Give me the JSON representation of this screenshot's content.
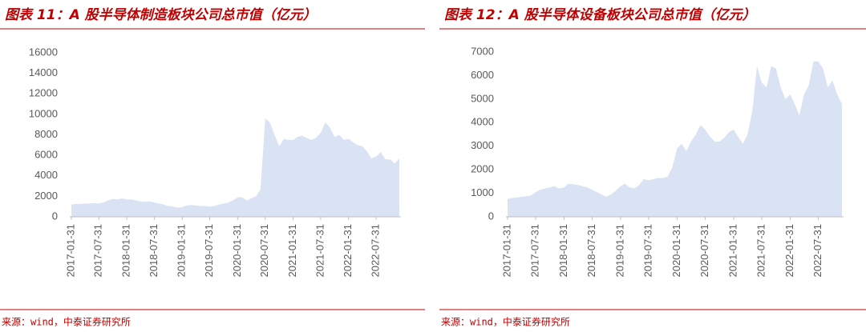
{
  "chart_data": [
    {
      "type": "area",
      "title": "图表 11：A 股半导体制造板块公司总市值（亿元）",
      "source": "来源：wind，中泰证券研究所",
      "color": "#dae3f3",
      "x": [
        "2017-01-31",
        "2017-02-28",
        "2017-03-31",
        "2017-04-30",
        "2017-05-31",
        "2017-06-30",
        "2017-07-31",
        "2017-08-31",
        "2017-09-30",
        "2017-10-31",
        "2017-11-30",
        "2017-12-31",
        "2018-01-31",
        "2018-02-28",
        "2018-03-31",
        "2018-04-30",
        "2018-05-31",
        "2018-06-30",
        "2018-07-31",
        "2018-08-31",
        "2018-09-30",
        "2018-10-31",
        "2018-11-30",
        "2018-12-31",
        "2019-01-31",
        "2019-02-28",
        "2019-03-31",
        "2019-04-30",
        "2019-05-31",
        "2019-06-30",
        "2019-07-31",
        "2019-08-31",
        "2019-09-30",
        "2019-10-31",
        "2019-11-30",
        "2019-12-31",
        "2020-01-31",
        "2020-02-29",
        "2020-03-31",
        "2020-04-30",
        "2020-05-31",
        "2020-06-30",
        "2020-07-31",
        "2020-08-31",
        "2020-09-30",
        "2020-10-31",
        "2020-11-30",
        "2020-12-31",
        "2021-01-31",
        "2021-02-28",
        "2021-03-31",
        "2021-04-30",
        "2021-05-31",
        "2021-06-30",
        "2021-07-31",
        "2021-08-31",
        "2021-09-30",
        "2021-10-31",
        "2021-11-30",
        "2021-12-31",
        "2022-01-31",
        "2022-02-28",
        "2022-03-31",
        "2022-04-30",
        "2022-05-31",
        "2022-06-30",
        "2022-07-31",
        "2022-08-31",
        "2022-09-30",
        "2022-10-31",
        "2022-11-30",
        "2022-12-31"
      ],
      "values": [
        1200,
        1250,
        1250,
        1300,
        1300,
        1350,
        1300,
        1400,
        1600,
        1750,
        1700,
        1800,
        1700,
        1700,
        1600,
        1500,
        1450,
        1500,
        1400,
        1300,
        1200,
        1050,
        1000,
        900,
        950,
        1100,
        1150,
        1100,
        1050,
        1050,
        1000,
        1050,
        1200,
        1300,
        1400,
        1600,
        1900,
        1900,
        1600,
        1800,
        2000,
        2700,
        9600,
        9200,
        8000,
        6900,
        7600,
        7500,
        7500,
        7800,
        7900,
        7700,
        7500,
        7700,
        8200,
        9200,
        8700,
        7800,
        8000,
        7500,
        7600,
        7300,
        7000,
        6900,
        6400,
        5700,
        5900,
        6300,
        5600,
        5600,
        5200,
        5700
      ],
      "ylim": [
        0,
        16000
      ],
      "yticks": [
        0,
        2000,
        4000,
        6000,
        8000,
        10000,
        12000,
        14000,
        16000
      ],
      "xticks": [
        "2017-01-31",
        "2017-07-31",
        "2018-01-31",
        "2018-07-31",
        "2019-01-31",
        "2019-07-31",
        "2020-01-31",
        "2020-07-31",
        "2021-01-31",
        "2021-07-31",
        "2022-01-31",
        "2022-07-31"
      ]
    },
    {
      "type": "area",
      "title": "图表 12：A 股半导体设备板块公司总市值（亿元）",
      "source": "来源：wind，中泰证券研究所",
      "color": "#dae3f3",
      "x": [
        "2017-01-31",
        "2017-02-28",
        "2017-03-31",
        "2017-04-30",
        "2017-05-31",
        "2017-06-30",
        "2017-07-31",
        "2017-08-31",
        "2017-09-30",
        "2017-10-31",
        "2017-11-30",
        "2017-12-31",
        "2018-01-31",
        "2018-02-28",
        "2018-03-31",
        "2018-04-30",
        "2018-05-31",
        "2018-06-30",
        "2018-07-31",
        "2018-08-31",
        "2018-09-30",
        "2018-10-31",
        "2018-11-30",
        "2018-12-31",
        "2019-01-31",
        "2019-02-28",
        "2019-03-31",
        "2019-04-30",
        "2019-05-31",
        "2019-06-30",
        "2019-07-31",
        "2019-08-31",
        "2019-09-30",
        "2019-10-31",
        "2019-11-30",
        "2019-12-31",
        "2020-01-31",
        "2020-02-29",
        "2020-03-31",
        "2020-04-30",
        "2020-05-31",
        "2020-06-30",
        "2020-07-31",
        "2020-08-31",
        "2020-09-30",
        "2020-10-31",
        "2020-11-30",
        "2020-12-31",
        "2021-01-31",
        "2021-02-28",
        "2021-03-31",
        "2021-04-30",
        "2021-05-31",
        "2021-06-30",
        "2021-07-31",
        "2021-08-31",
        "2021-09-30",
        "2021-10-31",
        "2021-11-30",
        "2021-12-31",
        "2022-01-31",
        "2022-02-28",
        "2022-03-31",
        "2022-04-30",
        "2022-05-31",
        "2022-06-30",
        "2022-07-31",
        "2022-08-31",
        "2022-09-30",
        "2022-10-31",
        "2022-11-30",
        "2022-12-31"
      ],
      "values": [
        750,
        800,
        820,
        850,
        870,
        900,
        1050,
        1150,
        1200,
        1250,
        1300,
        1200,
        1250,
        1400,
        1380,
        1350,
        1300,
        1250,
        1150,
        1050,
        950,
        850,
        950,
        1100,
        1300,
        1400,
        1250,
        1200,
        1350,
        1600,
        1550,
        1600,
        1650,
        1650,
        1700,
        2100,
        2900,
        3100,
        2800,
        3200,
        3500,
        3900,
        3700,
        3400,
        3200,
        3200,
        3350,
        3600,
        3700,
        3400,
        3100,
        3500,
        4500,
        6400,
        5700,
        5500,
        6400,
        6300,
        5500,
        5000,
        5200,
        4800,
        4300,
        5200,
        5600,
        6600,
        6600,
        6300,
        5500,
        5800,
        5200,
        4800
      ],
      "ylim": [
        0,
        7000
      ],
      "yticks": [
        0,
        1000,
        2000,
        3000,
        4000,
        5000,
        6000,
        7000
      ],
      "xticks": [
        "2017-01-31",
        "2017-07-31",
        "2018-01-31",
        "2018-07-31",
        "2019-01-31",
        "2019-07-31",
        "2020-01-31",
        "2020-07-31",
        "2021-01-31",
        "2021-07-31",
        "2022-01-31",
        "2022-07-31"
      ]
    }
  ]
}
